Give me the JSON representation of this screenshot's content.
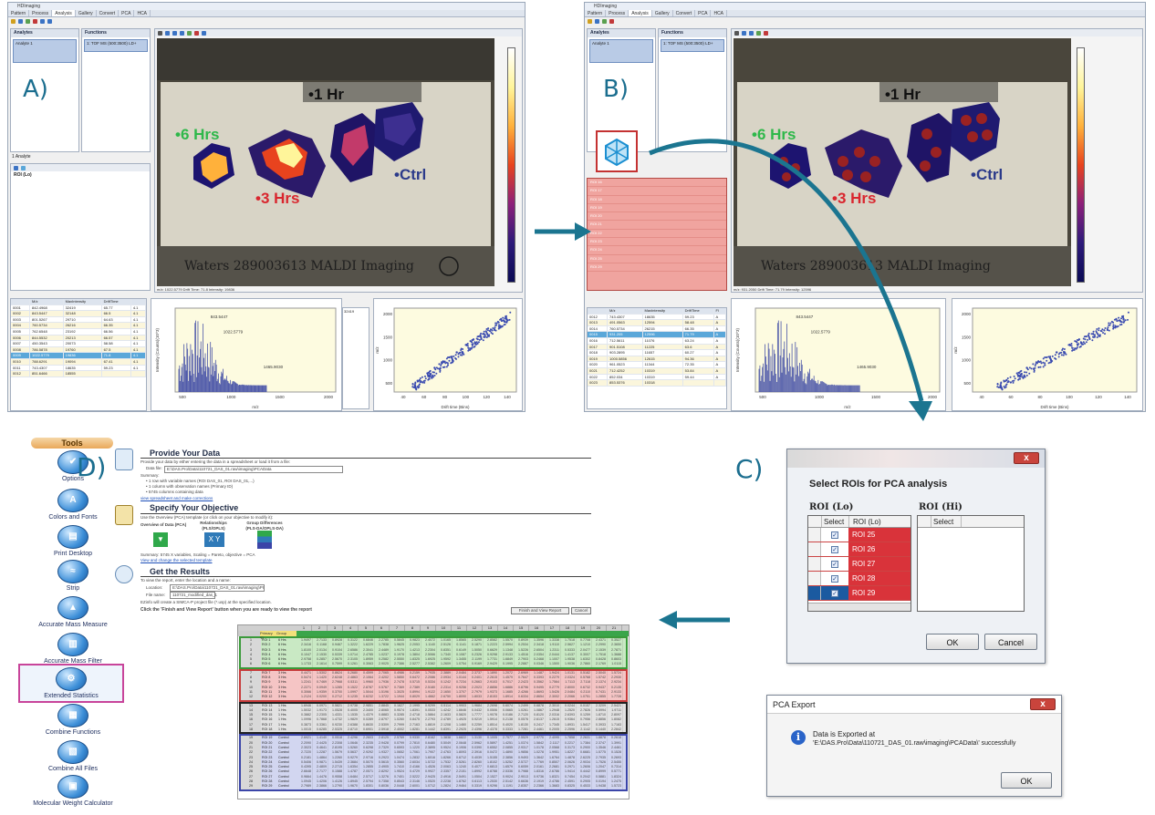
{
  "labels": {
    "a": "A)",
    "b": "B)",
    "c": "C)",
    "d": "D)"
  },
  "app": {
    "title": "HDImaging",
    "tabs": [
      "Pattern",
      "Process",
      "Analysis",
      "Gallery",
      "Convert",
      "PCA",
      "HCA"
    ],
    "active_tab": "Analysis"
  },
  "panel_a": {
    "analytes_header": "Analytes",
    "functions_header": "Functions",
    "analyte_item": "Analyte 1",
    "function_item": "1: TOF MS (500:3500) LD+",
    "analyte_count": "1 Analyte",
    "roi_header": "ROI (Lo)",
    "image_labels": {
      "one_hr": "•1 Hr",
      "six_hrs": "•6 Hrs",
      "three_hrs": "•3 Hrs",
      "ctrl": "•Ctrl"
    },
    "plate_text": "Waters   289003613   MALDI Imaging",
    "status": "m/z: 1022.5779  Drift Time: 71.8  Intensity: 19836",
    "table": {
      "headers": [
        "",
        "M/z",
        "MaxIntensity",
        "DriftTime",
        ""
      ],
      "rows": [
        [
          "0001",
          "842.4968",
          "32419",
          "65.77",
          "4.1"
        ],
        [
          "0002",
          "843.5447",
          "32148",
          "66.5",
          "4.1"
        ],
        [
          "0003",
          "801.5267",
          "29710",
          "64.63",
          "4.1"
        ],
        [
          "0004",
          "760.5734",
          "26216",
          "66.35",
          "4.1"
        ],
        [
          "0005",
          "762.6548",
          "23192",
          "66.56",
          "4.1"
        ],
        [
          "0006",
          "844.5532",
          "20213",
          "66.57",
          "4.1"
        ],
        [
          "0007",
          "450.3543",
          "20073",
          "58.58",
          "4.1"
        ],
        [
          "0008",
          "786.5878",
          "19760",
          "67.5",
          "4.1"
        ],
        [
          "0009",
          "1022.5779",
          "19836",
          "71.8",
          "4.1"
        ],
        [
          "0010",
          "788.6291",
          "19094",
          "67.41",
          "4.1"
        ],
        [
          "0011",
          "743.4307",
          "18635",
          "59.23",
          "4.1"
        ],
        [
          "0012",
          "851.6466",
          "18555",
          "",
          ""
        ]
      ],
      "highlight_row": 8
    }
  },
  "panel_b": {
    "analytes_header": "Analytes",
    "functions_header": "Functions",
    "analyte_item": "Analyte 1",
    "function_item": "1: TOF MS (500:3500) LD+",
    "roi_items": [
      "ROI 16",
      "ROI 17",
      "ROI 18",
      "ROI 19",
      "ROI 20",
      "ROI 21",
      "ROI 22",
      "ROI 23",
      "ROI 24",
      "ROI 25",
      "ROI 29"
    ],
    "image_labels": {
      "one_hr": "•1 Hr",
      "six_hrs": "•6 Hrs",
      "three_hrs": "•3 Hrs",
      "ctrl": "•Ctrl"
    },
    "plate_text": "Waters   289003613   MALDI Imaging",
    "status": "m/z: 931.2050  Drift Time: 71.79  Intensity: 12596",
    "table": {
      "headers": [
        "",
        "M/z",
        "MaxIntensity",
        "DriftTime",
        "Fl"
      ],
      "rows": [
        [
          "0012",
          "743.4307",
          "18635",
          "59.23",
          "A"
        ],
        [
          "0013",
          "491.0563",
          "12594",
          "58.48",
          "A"
        ],
        [
          "0014",
          "760.5734",
          "26215",
          "66.35",
          "A"
        ],
        [
          "0015",
          "931.205",
          "12596",
          "71.79",
          "A"
        ],
        [
          "0016",
          "712.5611",
          "11076",
          "63.24",
          "A"
        ],
        [
          "0017",
          "901.5108",
          "11225",
          "63.6",
          "A"
        ],
        [
          "0018",
          "903.2895",
          "11657",
          "60.27",
          "A"
        ],
        [
          "0019",
          "1000.5856",
          "12615",
          "94.36",
          "A"
        ],
        [
          "0020",
          "961.0523",
          "11344",
          "72.35",
          "A"
        ],
        [
          "0021",
          "712.4252",
          "10319",
          "53.84",
          "A"
        ],
        [
          "0022",
          "852.034",
          "10319",
          "59.44",
          "A"
        ],
        [
          "0023",
          "853.5376",
          "10318",
          "",
          ""
        ]
      ],
      "highlight_row": 3
    }
  },
  "spectrum": {
    "xlabel": "m/z",
    "ylabel": "Intensity (Counts)(10^3)",
    "x_ticks": [
      "500",
      "1000",
      "1500",
      "2000"
    ],
    "peak_labels": [
      "843.5447",
      "1022.5779",
      "1465.9030"
    ],
    "side_value": "32419"
  },
  "drift_plot": {
    "xlabel": "Drift time (Bins)",
    "ylabel": "m/z",
    "x_ticks": [
      "40",
      "60",
      "80",
      "100",
      "120",
      "140"
    ],
    "y_ticks": [
      "500",
      "1000",
      "1500",
      "2000"
    ]
  },
  "dialog_c": {
    "title_main": "Select ROIs for PCA analysis",
    "lo_header": "ROI (Lo)",
    "hi_header": "ROI (Hi)",
    "col_select": "Select",
    "col_roi": "ROI (Lo)",
    "hi_col_select": "Select",
    "rows": [
      "ROI 25",
      "ROI 26",
      "ROI 27",
      "ROI 28",
      "ROI 29"
    ],
    "ok": "OK",
    "cancel": "Cancel",
    "close": "x"
  },
  "dialog_export": {
    "title": "PCA Export",
    "line1": "Data is Exported at",
    "line2": "'E:\\DAS.Pro\\Data\\110721_DAS_01.raw\\imaging\\PCAData\\' successfully",
    "ok": "OK",
    "close": "x"
  },
  "tools": {
    "header": "Tools",
    "items": [
      "Options",
      "Colors and Fonts",
      "Print Desktop",
      "Strip",
      "Accurate Mass Measure",
      "Accurate Mass Filter",
      "Extended Statistics",
      "Combine Functions",
      "Combine All Files",
      "Molecular Weight Calculator"
    ],
    "selected": "Extended Statistics"
  },
  "wizard": {
    "step1_title": "Provide Your Data",
    "step1_text": "Provide your data by either entering the data in a spreadsheet or load it from a file:",
    "data_file_label": "Data file:",
    "data_file_value": "E:\\DAS.Pro\\Data\\110721_DAS_01.raw\\imaging\\PCAData",
    "summary_label": "Summary:",
    "summary_lines": [
      "1 row with variable names (ROI DAS_01, ROI DAS_01,...)",
      "1 column with observation names (Primary ID)",
      "5745 columns containing data"
    ],
    "step1_link": "view spreadsheet and make corrections",
    "step2_title": "Specify Your Objective",
    "step2_text": "Use the  Overview (PCA)  template (or click on your objective to modify it):",
    "obj1": "Overview of Data (PCA)",
    "obj2": "Relationships (PLS/OPLS)",
    "obj3": "Group Differences (PLS-DA/OPLS-DA)",
    "step2_summary": "Summary: 5745 X variables, Scaling = Pareto, objective = PCA",
    "step2_link": "View and change the selected template",
    "step3_title": "Get the Results",
    "step3_text": "To view the report, enter the location and a name:",
    "location_label": "Location:",
    "location_value": "E:\\DAS.Pro\\Data\\110721_DAS_01.raw\\imaging\\PCAData",
    "filename_label": "File name:",
    "filename_value": "110721_modified_das_1",
    "step3_note": "EZinfo will create a SIMCA-P project file (*.usp) at the specified location.",
    "instruction": "Click the 'Finish and View Report' button when you are ready to view the report",
    "finish": "Finish and View Report",
    "cancel": "Cancel"
  },
  "sheet": {
    "head1": "Primary ID",
    "head2": "Group",
    "groups": [
      {
        "name": "6 Hrs",
        "color": "#c9e9c4",
        "border": "#3a9a3a",
        "rows": [
          "ROI 1",
          "ROI 2",
          "ROI 3",
          "ROI 4",
          "ROI 5",
          "ROI 6"
        ]
      },
      {
        "name": "3 Hrs",
        "color": "#f5c5c5",
        "border": "#c73b3b",
        "rows": [
          "ROI 7",
          "ROI 8",
          "ROI 9",
          "ROI 10",
          "ROI 11",
          "ROI 12"
        ]
      },
      {
        "name": "1 Hrs",
        "color": "#e2e2e2",
        "border": "#222222",
        "rows": [
          "ROI 13",
          "ROI 14",
          "ROI 15",
          "ROI 16",
          "ROI 17",
          "ROI 18"
        ]
      },
      {
        "name": "Control",
        "color": "#d2d6f0",
        "border": "#3b45a8",
        "rows": [
          "ROI 19",
          "ROI 20",
          "ROI 21",
          "ROI 22",
          "ROI 23",
          "ROI 24",
          "ROI 25",
          "ROI 26",
          "ROI 27",
          "ROI 28",
          "ROI 29"
        ]
      }
    ],
    "col_numbers": [
      "1",
      "2",
      "3",
      "4",
      "5",
      "6",
      "7",
      "8",
      "9",
      "10",
      "11",
      "12",
      "13",
      "14",
      "15",
      "16",
      "17",
      "18",
      "19",
      "20",
      "21"
    ]
  }
}
